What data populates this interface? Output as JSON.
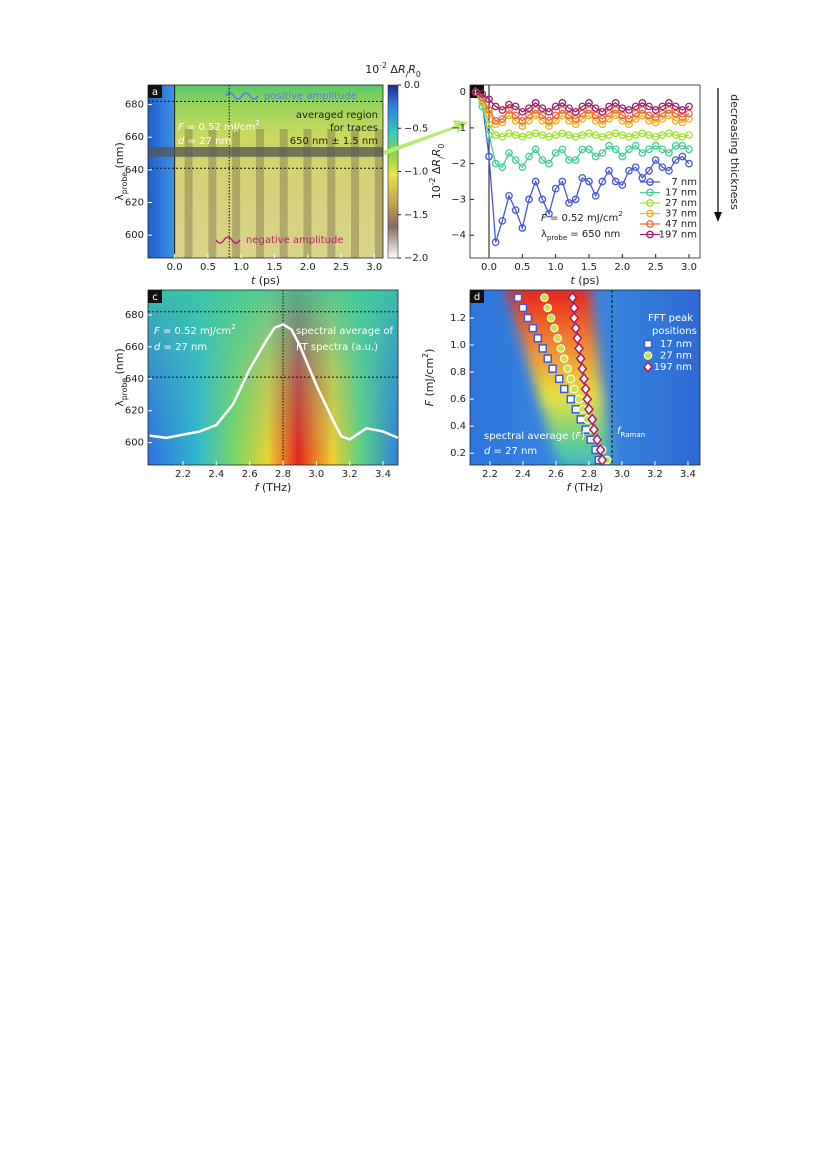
{
  "chart_data": [
    {
      "type": "heatmap",
      "panel": "a",
      "xlabel": [
        "t",
        " (ps)"
      ],
      "ylabel": [
        "λ",
        "probe",
        " (nm)"
      ],
      "xlim": [
        -0.4,
        3.13
      ],
      "ylim": [
        586,
        692
      ],
      "xticks": [
        {
          "value": 0,
          "label": "0.0"
        },
        0.5,
        {
          "value": 1,
          "label": "1.0"
        },
        1.5,
        {
          "value": 2,
          "label": "2.0"
        },
        2.5,
        {
          "value": 3,
          "label": "3.0"
        }
      ],
      "yticks": [
        600,
        620,
        640,
        660,
        680
      ],
      "vlines": [
        0,
        0.82
      ],
      "hlines": [
        682,
        641
      ],
      "band": [
        648,
        654
      ],
      "colorbar_label": [
        "10",
        "-2",
        " Δ",
        "R",
        "/",
        "R",
        "0"
      ],
      "zlim": [
        -2,
        0
      ],
      "zticks": [
        {
          "value": 0,
          "label": "0.0"
        },
        {
          "value": -0.5,
          "label": "−0.5"
        },
        {
          "value": -1,
          "label": "−1.0"
        },
        {
          "value": -1.5,
          "label": "−1.5"
        },
        {
          "value": -2,
          "label": "−2.0"
        }
      ],
      "annotations": {
        "positive": "positive amplitude",
        "negative": "negative amplitude",
        "region": [
          "averaged region",
          "for traces",
          "650 nm ± 1.5 nm"
        ],
        "fluence": [
          "F",
          " = 0.52 mJ/cm",
          "2"
        ],
        "thickness": [
          "d",
          " = 27 nm"
        ]
      }
    },
    {
      "type": "line",
      "panel": "b",
      "xlabel": [
        "t",
        " (ps)"
      ],
      "ylabel": [
        "10",
        "-2",
        " Δ",
        "R",
        "/",
        "R",
        "0"
      ],
      "xlim": [
        -0.285,
        3.165
      ],
      "ylim": [
        -4.64,
        0.2
      ],
      "xticks": [
        {
          "value": 0,
          "label": "0.0"
        },
        0.5,
        {
          "value": 1,
          "label": "1.0"
        },
        1.5,
        {
          "value": 2,
          "label": "2.0"
        },
        2.5,
        {
          "value": 3,
          "label": "3.0"
        }
      ],
      "yticks": [
        0,
        {
          "value": -1,
          "label": "−1"
        },
        {
          "value": -2,
          "label": "−2"
        },
        {
          "value": -3,
          "label": "−3"
        },
        {
          "value": -4,
          "label": "−4"
        }
      ],
      "vlines": [
        0
      ],
      "x": [
        -0.2,
        -0.1,
        0,
        0.1,
        0.2,
        0.3,
        0.4,
        0.5,
        0.6,
        0.7,
        0.8,
        0.9,
        1,
        1.1,
        1.2,
        1.3,
        1.4,
        1.5,
        1.6,
        1.7,
        1.8,
        1.9,
        2,
        2.1,
        2.2,
        2.3,
        2.4,
        2.5,
        2.6,
        2.7,
        2.8,
        2.9,
        3
      ],
      "series": [
        {
          "name": "7 nm",
          "color": "#4a58d8",
          "values": [
            0,
            -0.3,
            -1.8,
            -4.2,
            -3.6,
            -2.9,
            -3.3,
            -3.8,
            -3.0,
            -2.5,
            -3.0,
            -3.4,
            -2.7,
            -2.5,
            -3.1,
            -3.0,
            -2.4,
            -2.5,
            -2.9,
            -2.5,
            -2.2,
            -2.5,
            -2.6,
            -2.2,
            -2.1,
            -2.4,
            -2.2,
            -1.9,
            -2.1,
            -2.2,
            -1.9,
            -1.8,
            -2.0
          ]
        },
        {
          "name": "17 nm",
          "color": "#43cf95",
          "values": [
            0,
            -0.4,
            -1.2,
            -2.0,
            -2.1,
            -1.7,
            -1.9,
            -2.1,
            -1.8,
            -1.6,
            -1.9,
            -2.0,
            -1.7,
            -1.6,
            -1.9,
            -1.9,
            -1.6,
            -1.6,
            -1.8,
            -1.7,
            -1.5,
            -1.6,
            -1.8,
            -1.6,
            -1.5,
            -1.7,
            -1.6,
            -1.5,
            -1.6,
            -1.7,
            -1.5,
            -1.5,
            -1.6
          ]
        },
        {
          "name": "27 nm",
          "color": "#a3e030",
          "values": [
            0,
            -0.3,
            -0.9,
            -1.2,
            -1.25,
            -1.15,
            -1.2,
            -1.25,
            -1.2,
            -1.15,
            -1.2,
            -1.25,
            -1.2,
            -1.15,
            -1.2,
            -1.25,
            -1.2,
            -1.15,
            -1.2,
            -1.25,
            -1.2,
            -1.15,
            -1.2,
            -1.25,
            -1.2,
            -1.15,
            -1.2,
            -1.25,
            -1.2,
            -1.15,
            -1.2,
            -1.25,
            -1.2
          ]
        },
        {
          "name": "37 nm",
          "color": "#f4b020",
          "values": [
            0,
            -0.2,
            -0.6,
            -0.9,
            -0.85,
            -0.65,
            -0.8,
            -0.95,
            -0.8,
            -0.65,
            -0.8,
            -0.95,
            -0.8,
            -0.65,
            -0.8,
            -0.9,
            -0.75,
            -0.65,
            -0.8,
            -0.9,
            -0.75,
            -0.65,
            -0.8,
            -0.9,
            -0.75,
            -0.65,
            -0.8,
            -0.85,
            -0.75,
            -0.65,
            -0.8,
            -0.85,
            -0.75
          ]
        },
        {
          "name": "47 nm",
          "color": "#ef6a3a",
          "values": [
            0,
            -0.15,
            -0.5,
            -0.8,
            -0.75,
            -0.5,
            -0.65,
            -0.8,
            -0.65,
            -0.5,
            -0.65,
            -0.8,
            -0.65,
            -0.5,
            -0.65,
            -0.75,
            -0.6,
            -0.5,
            -0.65,
            -0.75,
            -0.6,
            -0.5,
            -0.65,
            -0.75,
            -0.6,
            -0.5,
            -0.65,
            -0.7,
            -0.6,
            -0.5,
            -0.6,
            -0.7,
            -0.6
          ]
        },
        {
          "name": "197 nm",
          "color": "#a0206a",
          "values": [
            0,
            -0.05,
            -0.2,
            -0.4,
            -0.5,
            -0.35,
            -0.4,
            -0.55,
            -0.45,
            -0.3,
            -0.45,
            -0.55,
            -0.4,
            -0.3,
            -0.45,
            -0.55,
            -0.4,
            -0.3,
            -0.45,
            -0.55,
            -0.4,
            -0.3,
            -0.45,
            -0.5,
            -0.4,
            -0.3,
            -0.4,
            -0.5,
            -0.4,
            -0.3,
            -0.4,
            -0.5,
            -0.4
          ]
        }
      ],
      "annotations": {
        "fluence": [
          "F",
          " = 0.52 mJ/cm",
          "2"
        ],
        "probe": [
          "λ",
          "probe",
          " = 650 nm"
        ],
        "arrow": "decreasing thickness"
      }
    },
    {
      "type": "spectrum",
      "panel": "c",
      "xlabel": [
        "f",
        " (THz)"
      ],
      "ylabel": [
        "λ",
        "probe",
        " (nm)"
      ],
      "xlim": [
        1.99,
        3.49
      ],
      "ylim": [
        586,
        695.6
      ],
      "xticks": [
        2.2,
        2.4,
        2.6,
        2.8,
        {
          "value": 3,
          "label": "3.0"
        },
        3.2,
        3.4
      ],
      "yticks": [
        600,
        620,
        640,
        660,
        680
      ],
      "vlines": [
        2.8
      ],
      "hlines": [
        682,
        641
      ],
      "curve": {
        "x": [
          2.0,
          2.1,
          2.2,
          2.3,
          2.4,
          2.5,
          2.6,
          2.7,
          2.75,
          2.8,
          2.85,
          2.9,
          3.0,
          3.1,
          3.15,
          3.2,
          3.3,
          3.4,
          3.49
        ],
        "y": [
          604.4,
          603,
          605,
          607,
          611,
          624,
          646,
          664,
          672,
          674,
          671,
          661,
          636,
          614,
          604,
          602,
          609,
          607,
          603
        ]
      },
      "annotations": {
        "fluence": [
          "F",
          " = 0.52 mJ/cm",
          "2"
        ],
        "thickness": [
          "d",
          " = 27 nm"
        ],
        "spectral": [
          "spectral average of",
          "FT spectra (a.u.)"
        ]
      }
    },
    {
      "type": "scatter",
      "panel": "d",
      "xlabel": [
        "f",
        " (THz)"
      ],
      "ylabel": [
        "F",
        " (mJ/cm",
        "2",
        ")"
      ],
      "xlim": [
        2.079,
        3.473
      ],
      "ylim": [
        0.113,
        1.407
      ],
      "xticks": [
        2.2,
        2.4,
        2.6,
        2.8,
        {
          "value": 3,
          "label": "3.0"
        },
        3.2,
        3.4
      ],
      "yticks": [
        0.2,
        0.4,
        0.6,
        0.8,
        {
          "value": 1,
          "label": "1.0"
        },
        1.2
      ],
      "vlines": [
        2.94
      ],
      "y": [
        1.35,
        1.275,
        1.2,
        1.125,
        1.05,
        0.975,
        0.9,
        0.825,
        0.75,
        0.675,
        0.6,
        0.525,
        0.45,
        0.375,
        0.3,
        0.225,
        0.15
      ],
      "series": [
        {
          "name": "17 nm",
          "color": "#3b5bdb",
          "marker": "square",
          "x": [
            2.37,
            2.4,
            2.43,
            2.46,
            2.49,
            2.52,
            2.55,
            2.58,
            2.62,
            2.65,
            2.69,
            2.72,
            2.75,
            2.78,
            2.81,
            2.84,
            2.86
          ]
        },
        {
          "name": "27 nm",
          "color": "#c8e44a",
          "marker": "circle",
          "x": [
            2.53,
            2.55,
            2.57,
            2.59,
            2.61,
            2.63,
            2.65,
            2.67,
            2.69,
            2.71,
            2.74,
            2.76,
            2.79,
            2.82,
            2.85,
            2.88,
            2.91
          ]
        },
        {
          "name": "197 nm",
          "color": "#b0185c",
          "marker": "diamond",
          "x": [
            2.7,
            2.71,
            2.71,
            2.72,
            2.73,
            2.74,
            2.75,
            2.76,
            2.77,
            2.78,
            2.79,
            2.8,
            2.82,
            2.83,
            2.85,
            2.87,
            2.88
          ]
        }
      ],
      "annotations": {
        "legend_title": [
          "FFT peak",
          "positions"
        ],
        "spectral": [
          "spectral average (",
          "F",
          ")"
        ],
        "thickness": [
          "d",
          " = 27 nm"
        ],
        "raman": [
          "f",
          "Raman"
        ]
      }
    }
  ]
}
